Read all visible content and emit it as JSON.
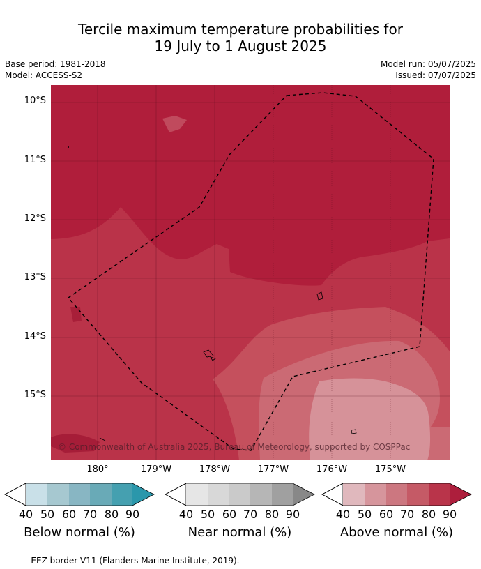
{
  "header": {
    "title_line1": "Tercile maximum temperature probabilities for",
    "title_line2": "19 July to 1 August 2025",
    "base_period": "Base period: 1981-2018",
    "model": "Model: ACCESS-S2",
    "model_run": "Model run: 05/07/2025",
    "issued": "Issued: 07/07/2025"
  },
  "map": {
    "lat_labels": [
      "10°S",
      "11°S",
      "12°S",
      "13°S",
      "14°S",
      "15°S"
    ],
    "lon_labels": [
      "180°",
      "179°W",
      "178°W",
      "177°W",
      "176°W",
      "175°W"
    ],
    "copyright": "© Commonwealth of Australia 2025, Bureau of Meteorology, supported by COSPPac"
  },
  "legend": {
    "ticks": [
      "40",
      "50",
      "60",
      "70",
      "80",
      "90"
    ],
    "below_title": "Below normal (%)",
    "near_title": "Near normal (%)",
    "above_title": "Above normal (%)",
    "below_colors": [
      "#c9e0e8",
      "#a6c8d0",
      "#88b6c3",
      "#69aab7",
      "#45a0b0",
      "#2b97ab"
    ],
    "near_colors": [
      "#e6e6e6",
      "#d8d8d8",
      "#cacaca",
      "#b6b6b6",
      "#a0a0a0",
      "#888888"
    ],
    "above_colors": [
      "#e0b8bd",
      "#d6959c",
      "#cc7780",
      "#c55a66",
      "#b9344a",
      "#ad1e3c"
    ]
  },
  "footer": {
    "eez_note": "--  --  -- EEZ border V11 (Flanders Marine Institute, 2019)."
  }
}
